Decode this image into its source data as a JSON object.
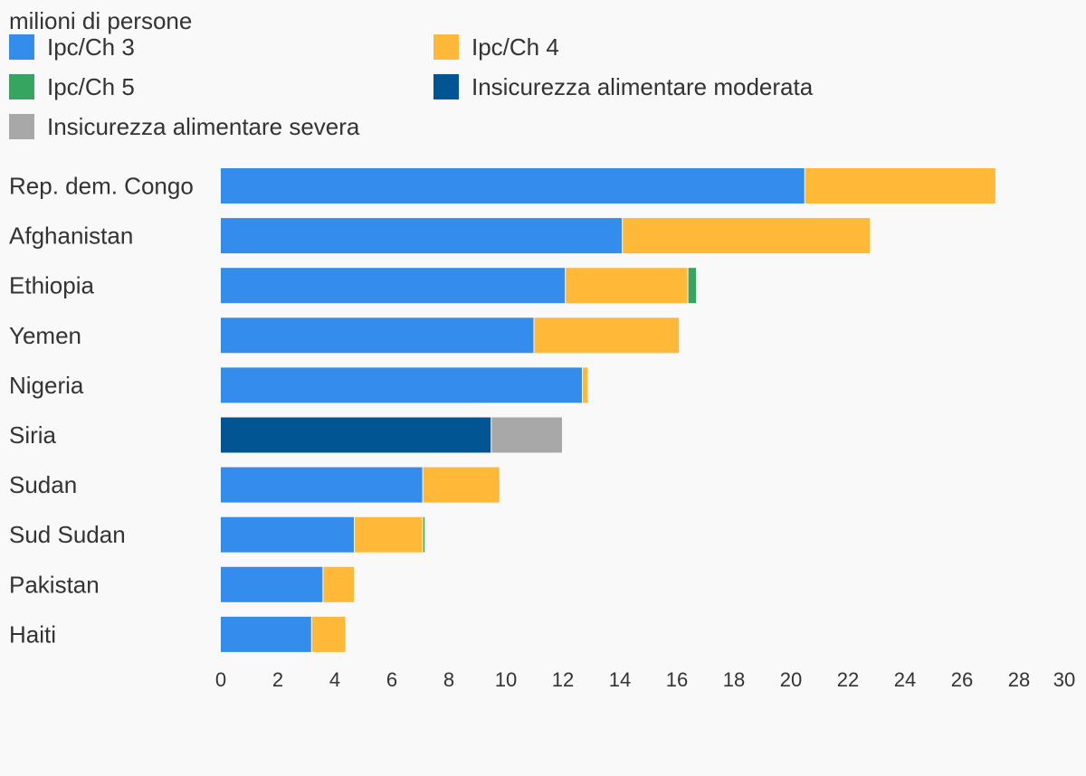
{
  "chart_data": {
    "type": "bar",
    "orientation": "horizontal",
    "stacked": true,
    "unit_label": "milioni di persone",
    "title": "",
    "xlabel": "",
    "ylabel": "",
    "xlim": [
      0,
      30
    ],
    "x_ticks": [
      0,
      2,
      4,
      6,
      8,
      10,
      12,
      14,
      16,
      18,
      20,
      22,
      24,
      26,
      28,
      30
    ],
    "grid": false,
    "legend_position": "top",
    "categories": [
      "Rep. dem. Congo",
      "Afghanistan",
      "Ethiopia",
      "Yemen",
      "Nigeria",
      "Siria",
      "Sudan",
      "Sud Sudan",
      "Pakistan",
      "Haiti"
    ],
    "series": [
      {
        "name": "Ipc/Ch 3",
        "color": "#348cec",
        "values": [
          20.5,
          14.1,
          12.1,
          11.0,
          12.7,
          0,
          7.1,
          4.7,
          3.6,
          3.2
        ]
      },
      {
        "name": "Ipc/Ch 4",
        "color": "#ffb837",
        "values": [
          6.7,
          8.7,
          4.3,
          5.1,
          0.2,
          0,
          2.7,
          2.4,
          1.1,
          1.2
        ]
      },
      {
        "name": "Ipc/Ch 5",
        "color": "#36a560",
        "values": [
          0,
          0,
          0.3,
          0,
          0,
          0,
          0,
          0.08,
          0,
          0
        ]
      },
      {
        "name": "Insicurezza alimentare moderata",
        "color": "#015592",
        "values": [
          0,
          0,
          0,
          0,
          0,
          9.5,
          0,
          0,
          0,
          0
        ]
      },
      {
        "name": "Insicurezza alimentare severa",
        "color": "#a8a8a8",
        "values": [
          0,
          0,
          0,
          0,
          0,
          2.5,
          0,
          0,
          0,
          0
        ]
      }
    ]
  }
}
